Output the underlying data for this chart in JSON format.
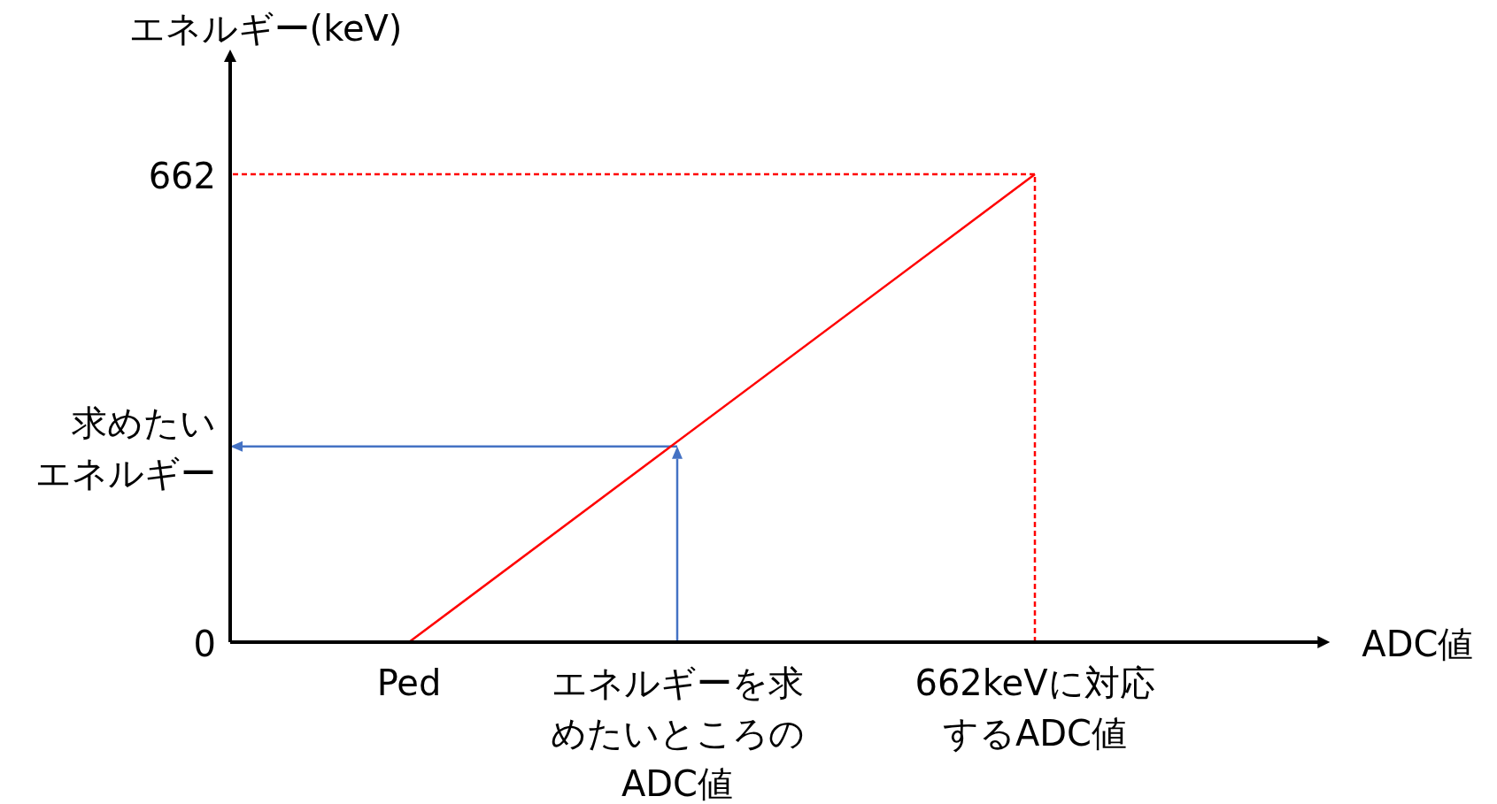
{
  "chart_data": {
    "type": "line",
    "xlabel": "ADC値",
    "ylabel": "エネルギー(keV)",
    "categories": [
      null,
      null,
      "Ped",
      null,
      null,
      "エネルギーを求めたいところのADC値",
      null,
      null,
      null,
      "662keVに対応するADC値",
      null,
      null,
      null
    ],
    "ylim": [
      0,
      821
    ],
    "yticks": [
      {
        "value": 0,
        "label": "0"
      },
      {
        "value": 277,
        "label": "求めたいエネルギー"
      },
      662
    ],
    "grid": false,
    "series": [
      {
        "color": "#ff0000",
        "x": [
          "Ped",
          "662keVに対応するADC値"
        ],
        "values": [
          0,
          662
        ],
        "line_style": "solid"
      }
    ],
    "ref_lines": [
      {
        "axis": "y",
        "value": 662,
        "color": "#ff0000",
        "line_style": "dashed"
      },
      {
        "axis": "x",
        "value": "662keVに対応するADC値",
        "color": "#ff0000",
        "line_style": "dashed"
      },
      {
        "axis": "x",
        "value": "エネルギーを求めたいところのADC値",
        "color": "#4472c4",
        "line_style": "solid"
      },
      {
        "axis": "y",
        "value": 277,
        "color": "#4472c4",
        "line_style": "solid"
      }
    ]
  }
}
